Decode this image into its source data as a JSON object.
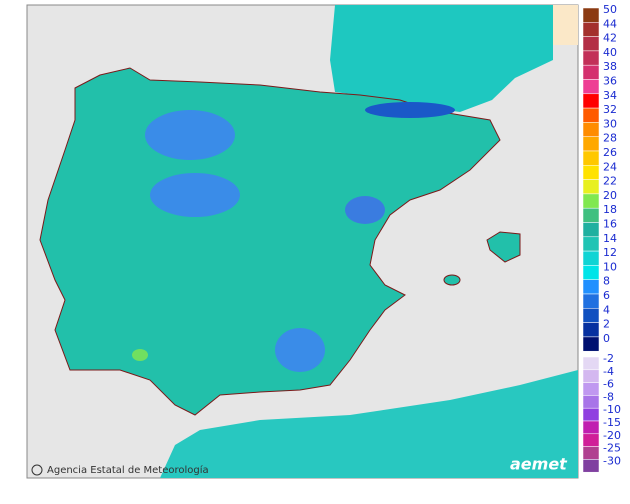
{
  "credit": "Agencia Estatal de Meteorología",
  "logo": "aemet",
  "legend": {
    "upper": [
      {
        "label": 50,
        "color": "#8b3a12"
      },
      {
        "label": 44,
        "color": "#a3302c"
      },
      {
        "label": 42,
        "color": "#b32e45"
      },
      {
        "label": 40,
        "color": "#c23058"
      },
      {
        "label": 38,
        "color": "#d4306e"
      },
      {
        "label": 36,
        "color": "#ee3e94"
      },
      {
        "label": 34,
        "color": "#ff0000"
      },
      {
        "label": 32,
        "color": "#ff5a00"
      },
      {
        "label": 30,
        "color": "#ff8c00"
      },
      {
        "label": 28,
        "color": "#ffa800"
      },
      {
        "label": 26,
        "color": "#ffc800"
      },
      {
        "label": 24,
        "color": "#ffe200"
      },
      {
        "label": 22,
        "color": "#e8f020"
      },
      {
        "label": 20,
        "color": "#80e850"
      },
      {
        "label": 18,
        "color": "#40c080"
      },
      {
        "label": 16,
        "color": "#20b0a0"
      },
      {
        "label": 14,
        "color": "#20c4b4"
      },
      {
        "label": 12,
        "color": "#10d4d4"
      },
      {
        "label": 10,
        "color": "#00e4e8"
      },
      {
        "label": 8,
        "color": "#2090ff"
      },
      {
        "label": 6,
        "color": "#2070e0"
      },
      {
        "label": 4,
        "color": "#1050c0"
      },
      {
        "label": 2,
        "color": "#0630a0"
      },
      {
        "label": 0,
        "color": "#001070"
      }
    ],
    "lower": [
      {
        "label": -2,
        "color": "#e4d8f4"
      },
      {
        "label": -4,
        "color": "#d4b8f0"
      },
      {
        "label": -6,
        "color": "#c098f0"
      },
      {
        "label": -8,
        "color": "#a874e8"
      },
      {
        "label": -10,
        "color": "#9040e0"
      },
      {
        "label": -15,
        "color": "#c020b0"
      },
      {
        "label": -20,
        "color": "#d02098"
      },
      {
        "label": -25,
        "color": "#b04090"
      },
      {
        "label": -30,
        "color": "#8040a0"
      }
    ]
  }
}
